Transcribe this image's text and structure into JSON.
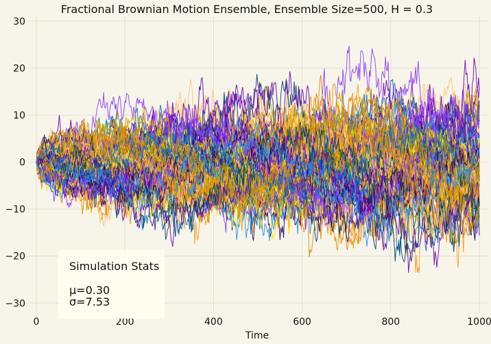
{
  "chart_data": {
    "type": "line",
    "title": "Fractional Brownian Motion Ensemble, Ensemble Size=500, H = 0.3",
    "xlabel": "Time",
    "ylabel": "",
    "xlim": [
      -20,
      1020
    ],
    "ylim": [
      -32,
      31
    ],
    "xticks": [
      0,
      200,
      400,
      600,
      800,
      1000
    ],
    "yticks": [
      -30,
      -20,
      -10,
      0,
      10,
      20,
      30
    ],
    "xtick_labels": [
      "0",
      "200",
      "400",
      "600",
      "800",
      "1000"
    ],
    "ytick_labels": [
      "−30",
      "−20",
      "−10",
      "0",
      "10",
      "20",
      "30"
    ],
    "grid": true,
    "ensemble_size": 500,
    "hurst": 0.3,
    "n_steps": 1000,
    "series_colors": [
      "#00406b",
      "#1f8fff",
      "#ffe400",
      "#9a7d00",
      "#ff9a14",
      "#ffc27a",
      "#6a00b8",
      "#2f006a",
      "#8a38ff",
      "#0070c0",
      "#d4a200",
      "#e28b00"
    ],
    "stats": {
      "title": "Simulation Stats",
      "mu": "μ=0.30",
      "sigma": "σ=7.53"
    }
  }
}
